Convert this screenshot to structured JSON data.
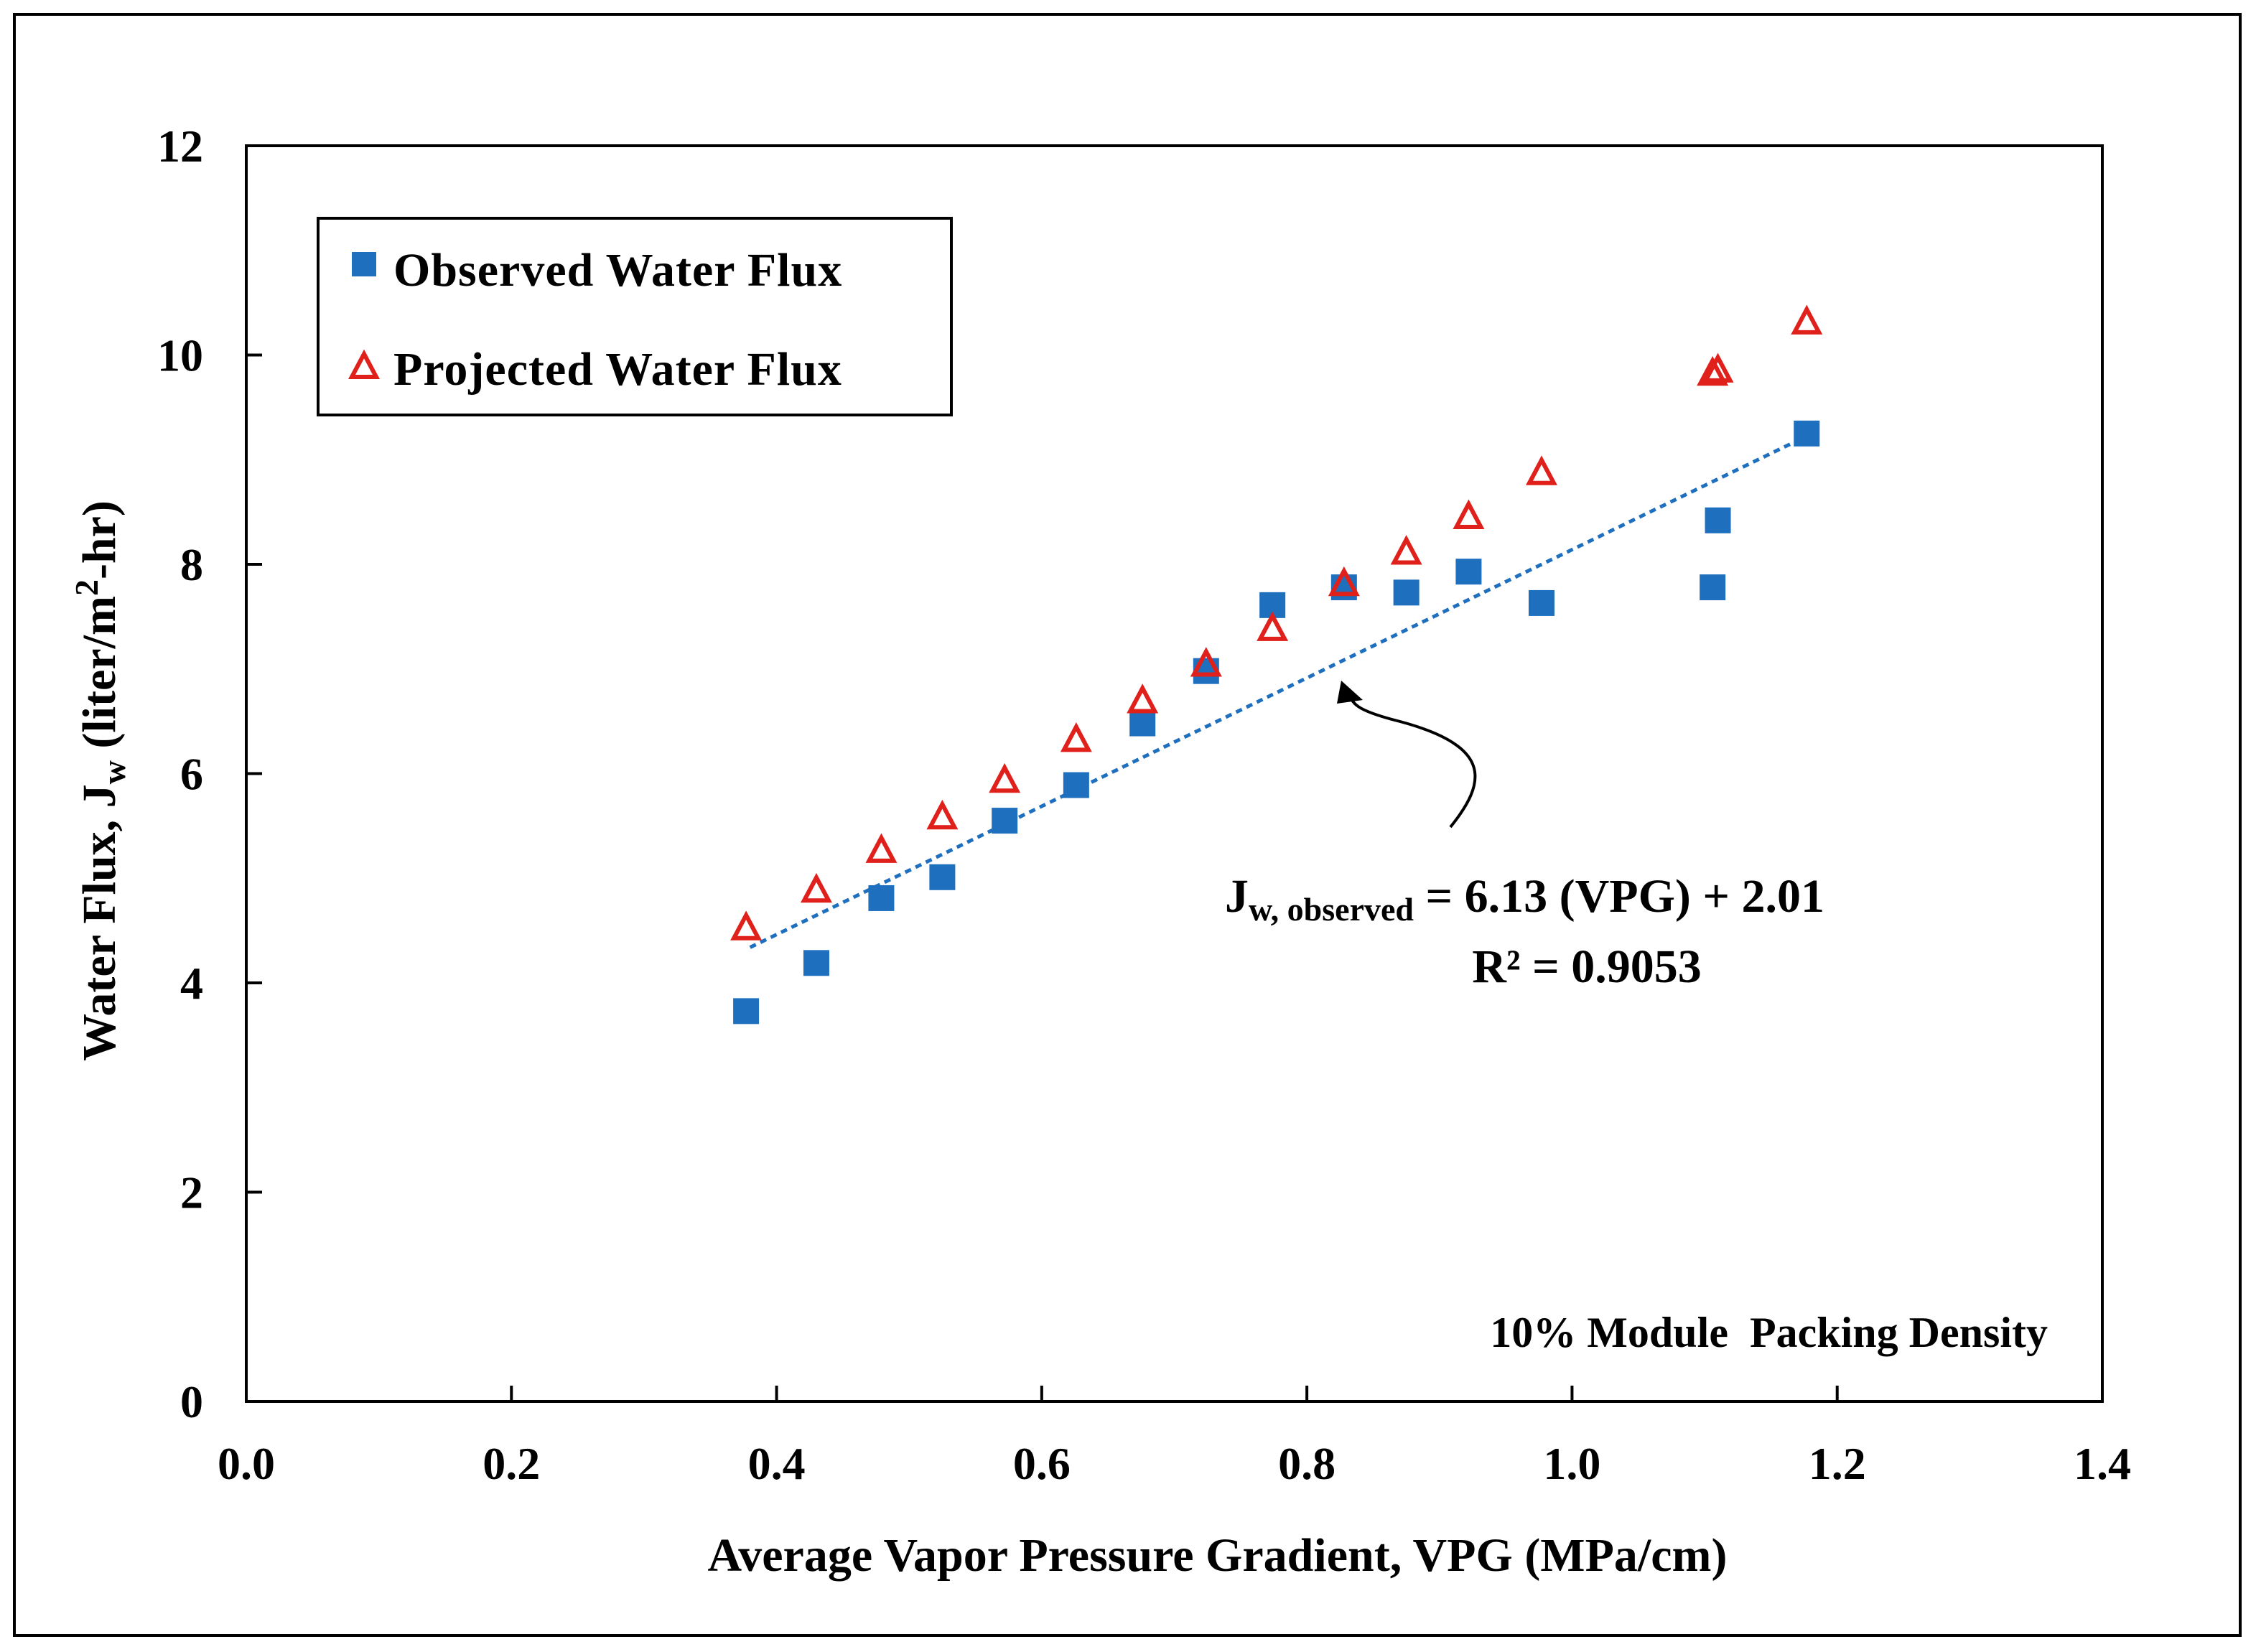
{
  "chart_data": {
    "type": "scatter",
    "xlabel": "Average Vapor Pressure Gradient, VPG (MPa/cm)",
    "ylabel": {
      "main": "Water Flux, J",
      "sub": "w",
      "unit_start": " (liter/m",
      "unit_sup": "2",
      "unit_end": "-hr)"
    },
    "xlim": [
      0.0,
      1.4
    ],
    "ylim": [
      0,
      12
    ],
    "x_ticks": [
      0.0,
      0.2,
      0.4,
      0.6,
      0.8,
      1.0,
      1.2,
      1.4
    ],
    "x_tick_labels": [
      "0.0",
      "0.2",
      "0.4",
      "0.6",
      "0.8",
      "1.0",
      "1.2",
      "1.4"
    ],
    "y_ticks": [
      0,
      2,
      4,
      6,
      8,
      10,
      12
    ],
    "y_tick_labels": [
      "0",
      "2",
      "4",
      "6",
      "8",
      "10",
      "12"
    ],
    "grid": false,
    "legend_position": "top-left",
    "series": [
      {
        "name": "Observed Water Flux",
        "marker": "square",
        "color": "#1F6FBF",
        "points": [
          {
            "x": 0.377,
            "y": 3.73
          },
          {
            "x": 0.43,
            "y": 4.19
          },
          {
            "x": 0.479,
            "y": 4.81
          },
          {
            "x": 0.525,
            "y": 5.01
          },
          {
            "x": 0.572,
            "y": 5.55
          },
          {
            "x": 0.626,
            "y": 5.89
          },
          {
            "x": 0.676,
            "y": 6.48
          },
          {
            "x": 0.724,
            "y": 6.98
          },
          {
            "x": 0.774,
            "y": 7.61
          },
          {
            "x": 0.828,
            "y": 7.78
          },
          {
            "x": 0.875,
            "y": 7.73
          },
          {
            "x": 0.922,
            "y": 7.93
          },
          {
            "x": 0.977,
            "y": 7.63
          },
          {
            "x": 1.106,
            "y": 7.78
          },
          {
            "x": 1.11,
            "y": 8.42
          },
          {
            "x": 1.177,
            "y": 9.25
          }
        ]
      },
      {
        "name": "Projected Water Flux",
        "marker": "triangle-open",
        "color": "#E0201B",
        "points": [
          {
            "x": 0.377,
            "y": 4.53
          },
          {
            "x": 0.43,
            "y": 4.89
          },
          {
            "x": 0.479,
            "y": 5.27
          },
          {
            "x": 0.525,
            "y": 5.59
          },
          {
            "x": 0.572,
            "y": 5.94
          },
          {
            "x": 0.626,
            "y": 6.33
          },
          {
            "x": 0.676,
            "y": 6.7
          },
          {
            "x": 0.724,
            "y": 7.05
          },
          {
            "x": 0.774,
            "y": 7.39
          },
          {
            "x": 0.828,
            "y": 7.82
          },
          {
            "x": 0.875,
            "y": 8.12
          },
          {
            "x": 0.922,
            "y": 8.46
          },
          {
            "x": 0.977,
            "y": 8.88
          },
          {
            "x": 1.106,
            "y": 9.83
          },
          {
            "x": 1.11,
            "y": 9.86
          },
          {
            "x": 1.177,
            "y": 10.32
          }
        ]
      }
    ],
    "trendline": {
      "series": "Observed Water Flux",
      "slope": 6.13,
      "intercept": 2.01,
      "x_range": [
        0.38,
        1.177
      ],
      "color": "#1F6FBF",
      "style": "dotted"
    },
    "annotations": {
      "equation_prefix": "J",
      "equation_subscript": "w, observed",
      "equation_rest": " = 6.13 (VPG) + 2.01",
      "r_squared": "R² = 0.9053",
      "packing_note": "10% Module  Packing Density"
    }
  }
}
